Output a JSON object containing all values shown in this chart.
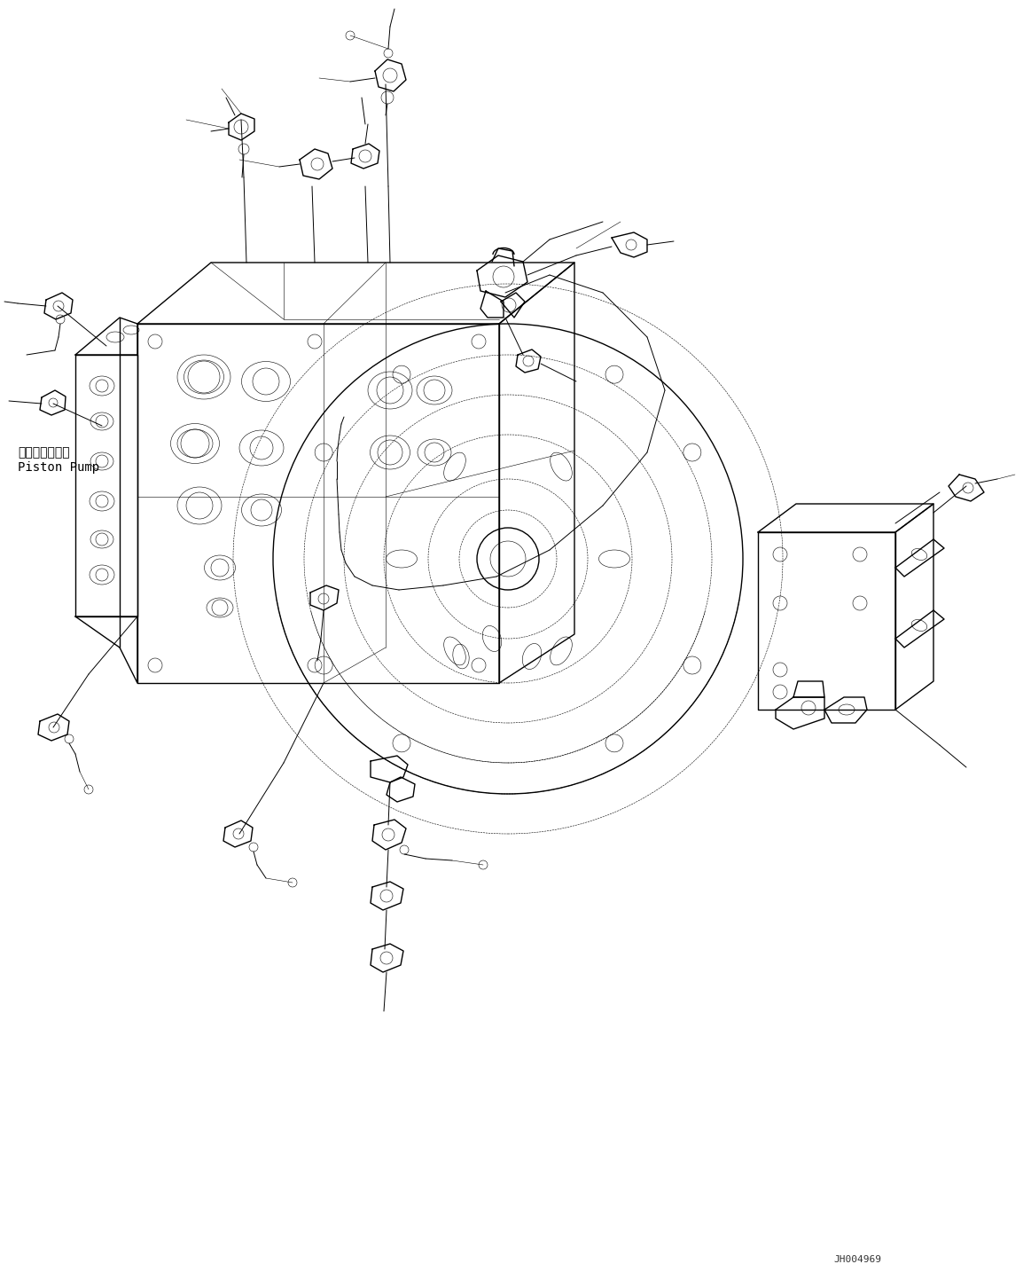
{
  "bg_color": "#ffffff",
  "line_color": "#000000",
  "fig_width": 11.63,
  "fig_height": 14.34,
  "watermark": "JH004969",
  "piston_label_jp": "ピストンポンプ",
  "piston_label_en": "Piston Pump",
  "lw": 0.7,
  "lw2": 1.0,
  "lw_thin": 0.4
}
